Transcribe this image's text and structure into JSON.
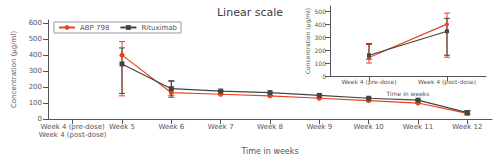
{
  "chart_data": [
    {
      "type": "line",
      "title": "Linear scale",
      "xlabel": "Time in weeks",
      "ylabel": "Concentration (µg/ml)",
      "categories": [
        "Week 4 (pre-dose)\nWeek 4 (post-dose)",
        "Week 5",
        "Week 6",
        "Week 7",
        "Week 8",
        "Week 9",
        "Week 10",
        "Week 11",
        "Week 12"
      ],
      "ylim": [
        0,
        620
      ],
      "yticks": [
        0,
        100,
        200,
        300,
        400,
        500,
        600
      ],
      "grid": false,
      "legend": "upper left",
      "series": [
        {
          "name": "ABP 798",
          "color": "#e8441a",
          "marker": "circle",
          "values": [
            null,
            400,
            165,
            155,
            145,
            130,
            115,
            100,
            35
          ],
          "yerr_low": [
            null,
            255,
            30,
            0,
            0,
            0,
            0,
            0,
            10
          ],
          "yerr_high": [
            null,
            85,
            70,
            0,
            0,
            0,
            0,
            0,
            15
          ]
        },
        {
          "name": "Rituximab",
          "color": "#444444",
          "marker": "square",
          "values": [
            null,
            345,
            190,
            175,
            165,
            148,
            130,
            118,
            40
          ],
          "yerr_low": [
            null,
            185,
            45,
            0,
            0,
            0,
            0,
            0,
            10
          ],
          "yerr_high": [
            null,
            100,
            50,
            0,
            0,
            0,
            0,
            0,
            12
          ]
        }
      ]
    },
    {
      "type": "line",
      "xlabel": "Time in weeks",
      "ylabel": "Concentration (µg/ml)",
      "categories": [
        "Week 4 (pre-dose)",
        "Week 4 (post-dose)"
      ],
      "ylim": [
        0,
        540
      ],
      "yticks": [
        0,
        100,
        200,
        300,
        400,
        500
      ],
      "grid": false,
      "series": [
        {
          "color": "#e8441a",
          "marker": "circle",
          "values": [
            143,
            400
          ],
          "yerr_low": [
            43,
            255
          ],
          "yerr_high": [
            100,
            85
          ]
        },
        {
          "color": "#444444",
          "marker": "square",
          "values": [
            160,
            345
          ],
          "yerr_low": [
            30,
            185
          ],
          "yerr_high": [
            90,
            100
          ]
        }
      ]
    }
  ]
}
